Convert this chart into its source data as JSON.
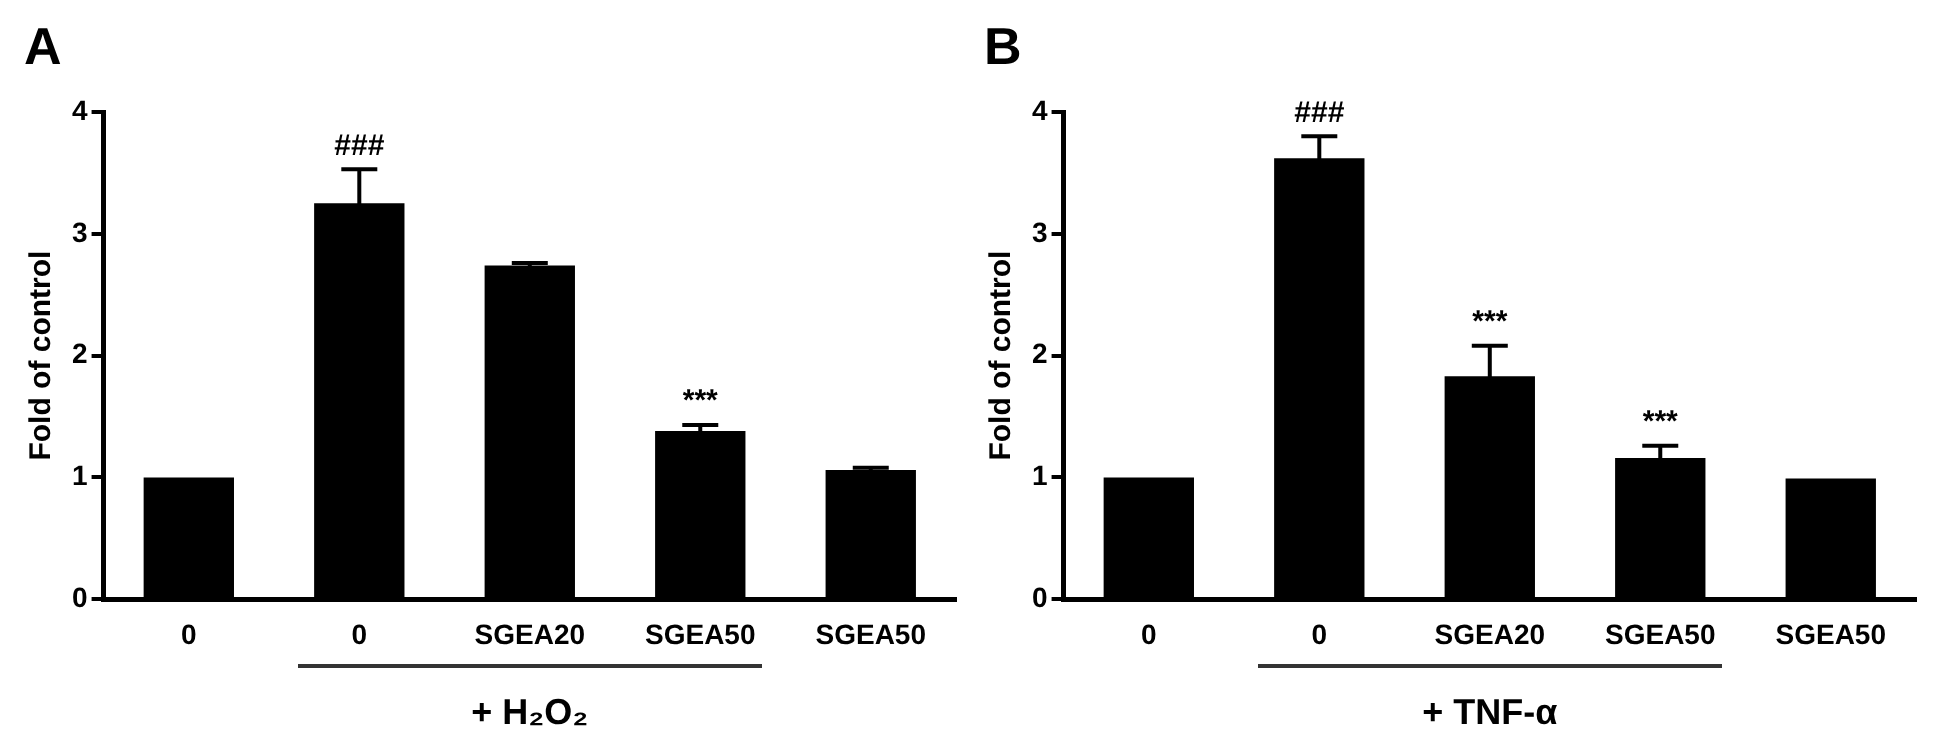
{
  "chart_data": [
    {
      "type": "bar",
      "title": "A",
      "xlabel": "+ H₂O₂",
      "ylabel": "Fold of control",
      "categories": [
        "0",
        "0",
        "SGEA20",
        "SGEA50",
        "SGEA50"
      ],
      "values": [
        1,
        3.25,
        2.74,
        1.38,
        1.06
      ],
      "errors": [
        null,
        0.28,
        0.02,
        0.05,
        0.02
      ],
      "value_labels": [
        null,
        "###",
        null,
        "***",
        null
      ],
      "color": "#000000",
      "ylim": [
        0,
        4
      ],
      "yticks": [
        0,
        1,
        2,
        3,
        4
      ],
      "grid": false,
      "legend": false
    },
    {
      "type": "bar",
      "title": "B",
      "xlabel": "+ TNF-α",
      "ylabel": "Fold of control",
      "categories": [
        "0",
        "0",
        "SGEA20",
        "SGEA50",
        "SGEA50"
      ],
      "values": [
        1,
        3.62,
        1.83,
        1.16,
        0.99
      ],
      "errors": [
        null,
        0.18,
        0.25,
        0.1,
        null
      ],
      "value_labels": [
        null,
        "###",
        "***",
        "***",
        null
      ],
      "color": "#000000",
      "ylim": [
        0,
        4
      ],
      "yticks": [
        0,
        1,
        2,
        3,
        4
      ],
      "grid": false,
      "legend": false
    }
  ]
}
